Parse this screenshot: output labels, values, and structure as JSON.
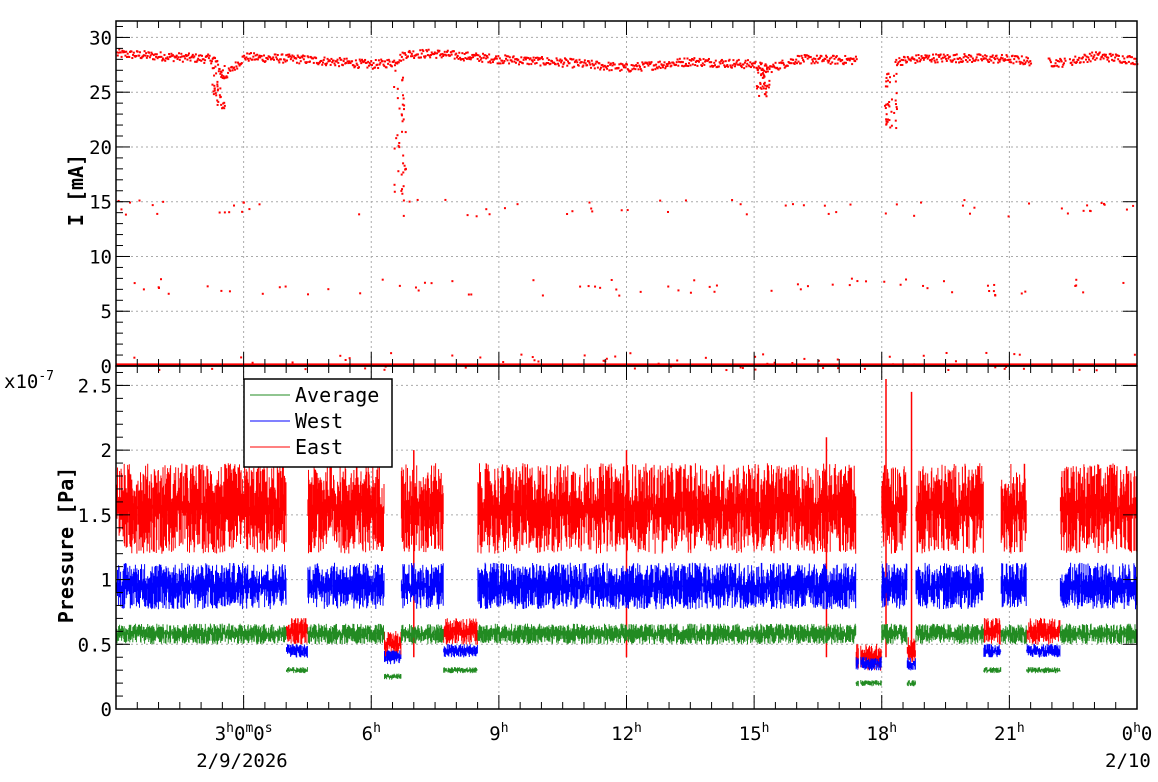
{
  "chart_data": [
    {
      "type": "scatter",
      "ylabel": "I [mA]",
      "ylim": [
        0,
        31.5
      ],
      "yticks": [
        "0",
        "5",
        "10",
        "15",
        "20",
        "25",
        "30"
      ],
      "xlim_hours": [
        0,
        24
      ],
      "grid": true,
      "series": [
        {
          "color": "#ff0000",
          "baseline_segments": [
            {
              "x": [
                0,
                2.3,
                2.5,
                3.0,
                4.3,
                6.0,
                6.5,
                6.8,
                7.5,
                9.0,
                10.5,
                12.0,
                13.5,
                15.0,
                15.3,
                16.0,
                17.4
              ],
              "y": [
                28.6,
                28.1,
                26.4,
                28.3,
                28.1,
                27.6,
                27.8,
                28.6,
                28.6,
                28.1,
                27.8,
                27.3,
                27.9,
                27.6,
                27.2,
                28.1,
                28.0
              ]
            },
            {
              "x": [
                18.3,
                19.0,
                20.0,
                21.0,
                21.5
              ],
              "y": [
                27.9,
                28.2,
                28.2,
                28.1,
                27.9
              ]
            },
            {
              "x": [
                21.9,
                22.3
              ],
              "y": [
                27.8,
                27.8
              ]
            },
            {
              "x": [
                22.4,
                23.0,
                24.0
              ],
              "y": [
                27.9,
                28.4,
                28.0
              ]
            }
          ],
          "dips": [
            {
              "x": 2.3,
              "ymin": 23.5
            },
            {
              "x": 6.55,
              "ymin": 15.8
            },
            {
              "x": 15.1,
              "ymin": 24.7
            },
            {
              "x": 18.1,
              "ymin": 21.8
            }
          ],
          "scatter_bands": [
            14.5,
            7.3,
            0.5
          ]
        }
      ]
    },
    {
      "type": "line",
      "ylabel": "Pressure [Pa]",
      "y_multiplier": "x10",
      "y_exponent": "-7",
      "ylim": [
        0,
        2.65
      ],
      "yticks": [
        "0",
        "0.5",
        "1",
        "1.5",
        "2",
        "2.5"
      ],
      "xlim_hours": [
        0,
        24
      ],
      "xticks": [
        {
          "hour": 3,
          "base": "3",
          "sup": "h",
          "extra": "0",
          "extra_sup": "m",
          "extra2": "0",
          "extra2_sup": "s"
        },
        {
          "hour": 6,
          "base": "6",
          "sup": "h"
        },
        {
          "hour": 9,
          "base": "9",
          "sup": "h"
        },
        {
          "hour": 12,
          "base": "12",
          "sup": "h"
        },
        {
          "hour": 15,
          "base": "15",
          "sup": "h"
        },
        {
          "hour": 18,
          "base": "18",
          "sup": "h"
        },
        {
          "hour": 21,
          "base": "21",
          "sup": "h"
        },
        {
          "hour": 24,
          "base": "0",
          "sup": "h",
          "extra": "0"
        }
      ],
      "date_labels": [
        "2/9/2026",
        "2/10"
      ],
      "grid": true,
      "legend": {
        "position": "top-left",
        "entries": [
          "Average",
          "West",
          "East"
        ]
      },
      "series": [
        {
          "name": "Average",
          "color": "#228b22",
          "base": 0.58,
          "spread": 0.08,
          "drops": [
            [
              4.0,
              4.5,
              0.3
            ],
            [
              6.3,
              6.7,
              0.25
            ],
            [
              7.7,
              8.5,
              0.3
            ],
            [
              17.4,
              18.0,
              0.2
            ],
            [
              18.6,
              18.8,
              0.2
            ],
            [
              20.4,
              20.8,
              0.3
            ],
            [
              21.4,
              22.2,
              0.3
            ]
          ]
        },
        {
          "name": "West",
          "color": "#0000ff",
          "base": 0.95,
          "spread": 0.18,
          "drops": [
            [
              4.0,
              4.5,
              0.45
            ],
            [
              6.3,
              6.7,
              0.4
            ],
            [
              7.7,
              8.5,
              0.45
            ],
            [
              17.4,
              18.0,
              0.35
            ],
            [
              18.6,
              18.8,
              0.35
            ],
            [
              20.4,
              20.8,
              0.45
            ],
            [
              21.4,
              22.2,
              0.45
            ]
          ]
        },
        {
          "name": "East",
          "color": "#ff0000",
          "base": 1.55,
          "spread": 0.35,
          "drops": [
            [
              4.0,
              4.5,
              0.6
            ],
            [
              6.3,
              6.7,
              0.5
            ],
            [
              7.7,
              8.5,
              0.6
            ],
            [
              17.4,
              18.0,
              0.4
            ],
            [
              18.6,
              18.8,
              0.45
            ],
            [
              20.4,
              20.8,
              0.6
            ],
            [
              21.4,
              22.2,
              0.6
            ]
          ],
          "spikes": [
            [
              18.1,
              2.55
            ],
            [
              18.7,
              2.45
            ],
            [
              7.0,
              2.0
            ],
            [
              12.0,
              2.0
            ],
            [
              16.7,
              2.1
            ]
          ]
        }
      ]
    }
  ]
}
